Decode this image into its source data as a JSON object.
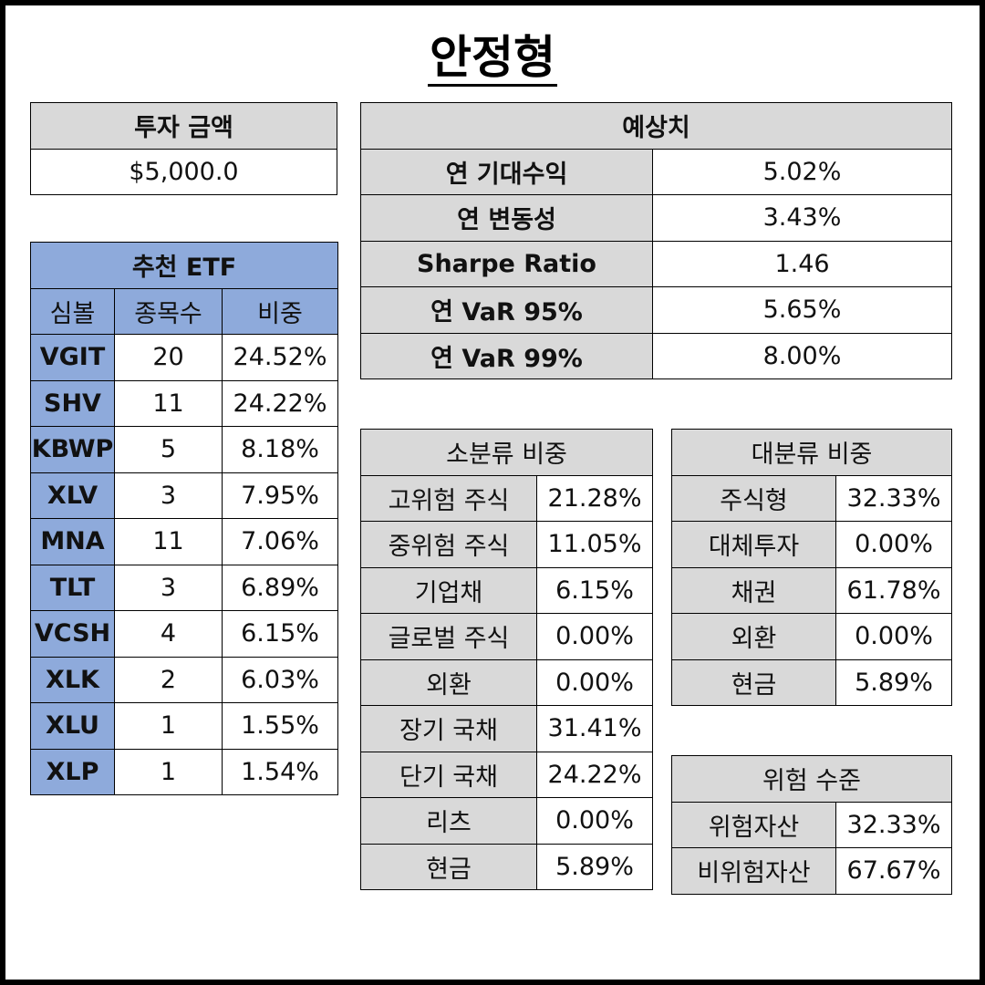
{
  "title": "안정형",
  "investment": {
    "header": "투자 금액",
    "value": "$5,000.0"
  },
  "etf": {
    "header": "추천 ETF",
    "columns": [
      "심볼",
      "종목수",
      "비중"
    ],
    "rows": [
      {
        "symbol": "VGIT",
        "count": "20",
        "weight": "24.52%"
      },
      {
        "symbol": "SHV",
        "count": "11",
        "weight": "24.22%"
      },
      {
        "symbol": "KBWP",
        "count": "5",
        "weight": "8.18%"
      },
      {
        "symbol": "XLV",
        "count": "3",
        "weight": "7.95%"
      },
      {
        "symbol": "MNA",
        "count": "11",
        "weight": "7.06%"
      },
      {
        "symbol": "TLT",
        "count": "3",
        "weight": "6.89%"
      },
      {
        "symbol": "VCSH",
        "count": "4",
        "weight": "6.15%"
      },
      {
        "symbol": "XLK",
        "count": "2",
        "weight": "6.03%"
      },
      {
        "symbol": "XLU",
        "count": "1",
        "weight": "1.55%"
      },
      {
        "symbol": "XLP",
        "count": "1",
        "weight": "1.54%"
      }
    ]
  },
  "forecast": {
    "header": "예상치",
    "rows": [
      {
        "label": "연 기대수익",
        "value": "5.02%"
      },
      {
        "label": "연 변동성",
        "value": "3.43%"
      },
      {
        "label": "Sharpe Ratio",
        "value": "1.46"
      },
      {
        "label": "연 VaR 95%",
        "value": "5.65%"
      },
      {
        "label": "연 VaR 99%",
        "value": "8.00%"
      }
    ]
  },
  "sub_class": {
    "header": "소분류 비중",
    "rows": [
      {
        "label": "고위험 주식",
        "value": "21.28%"
      },
      {
        "label": "중위험 주식",
        "value": "11.05%"
      },
      {
        "label": "기업채",
        "value": "6.15%"
      },
      {
        "label": "글로벌 주식",
        "value": "0.00%"
      },
      {
        "label": "외환",
        "value": "0.00%"
      },
      {
        "label": "장기 국채",
        "value": "31.41%"
      },
      {
        "label": "단기 국채",
        "value": "24.22%"
      },
      {
        "label": "리츠",
        "value": "0.00%"
      },
      {
        "label": "현금",
        "value": "5.89%"
      }
    ]
  },
  "major_class": {
    "header": "대분류 비중",
    "rows": [
      {
        "label": "주식형",
        "value": "32.33%"
      },
      {
        "label": "대체투자",
        "value": "0.00%"
      },
      {
        "label": "채권",
        "value": "61.78%"
      },
      {
        "label": "외환",
        "value": "0.00%"
      },
      {
        "label": "현금",
        "value": "5.89%"
      }
    ]
  },
  "risk": {
    "header": "위험 수준",
    "rows": [
      {
        "label": "위험자산",
        "value": "32.33%"
      },
      {
        "label": "비위험자산",
        "value": "67.67%"
      }
    ]
  }
}
